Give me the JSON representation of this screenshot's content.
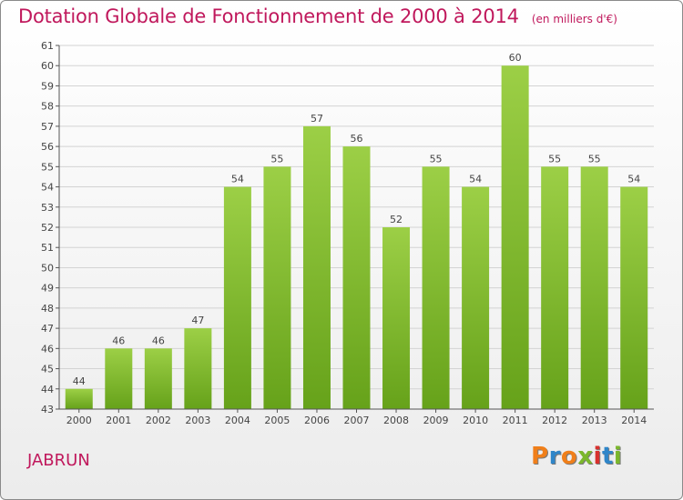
{
  "header": {
    "title": "Dotation Globale de Fonctionnement de 2000 à 2014",
    "unit": "(en milliers d'€)"
  },
  "footer": {
    "commune": "JABRUN",
    "logo_text": "Proxiti",
    "logo_colors": [
      "#f07f1a",
      "#2f86c9",
      "#f07f1a",
      "#7bb72c",
      "#d8312e",
      "#2f86c9",
      "#7bb72c"
    ]
  },
  "colors": {
    "title": "#c0185c",
    "bar_light": "#9ccf46",
    "bar_dark": "#66a21a",
    "grid": "#d3d3d3",
    "axis": "#555555"
  },
  "chart_data": {
    "type": "bar",
    "categories": [
      "2000",
      "2001",
      "2002",
      "2003",
      "2004",
      "2005",
      "2006",
      "2007",
      "2008",
      "2009",
      "2010",
      "2011",
      "2012",
      "2013",
      "2014"
    ],
    "values": [
      44,
      46,
      46,
      47,
      54,
      55,
      57,
      56,
      52,
      55,
      54,
      60,
      55,
      55,
      54
    ],
    "ylim": [
      43,
      61
    ],
    "yticks": [
      43,
      44,
      45,
      46,
      47,
      48,
      49,
      50,
      51,
      52,
      53,
      54,
      55,
      56,
      57,
      58,
      59,
      60,
      61
    ],
    "grid": true,
    "data_labels": true,
    "title": "Dotation Globale de Fonctionnement de 2000 à 2014",
    "xlabel": "",
    "ylabel": ""
  }
}
